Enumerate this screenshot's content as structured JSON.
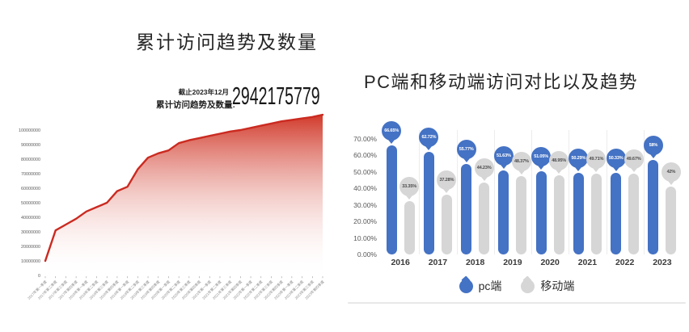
{
  "chart_data": [
    {
      "type": "area",
      "title": "累计访问趋势及数量",
      "annotation": {
        "asof": "截止2023年12月",
        "label": "累计访问趋势及数量:",
        "value": "2942175779"
      },
      "x": [
        "2017年第一季度",
        "2017年第二季度",
        "2017年第三季度",
        "2017年第四季度",
        "2018年第一季度",
        "2018年第二季度",
        "2018年第三季度",
        "2018年第四季度",
        "2019年第一季度",
        "2019年第二季度",
        "2019年第三季度",
        "2019年第四季度",
        "2020年第一季度",
        "2020年第二季度",
        "2020年第三季度",
        "2020年第四季度",
        "2021年第一季度",
        "2021年第二季度",
        "2021年第三季度",
        "2021年第四季度",
        "2022年第一季度",
        "2022年第二季度",
        "2022年第三季度",
        "2022年第四季度",
        "2023年第一季度",
        "2023年第二季度",
        "2023年第三季度",
        "2023年第四季度"
      ],
      "values_millions": [
        10,
        31,
        35,
        39,
        44,
        47,
        50,
        58,
        61,
        73,
        81,
        84,
        86,
        91,
        93,
        94.5,
        96,
        97.5,
        99,
        100,
        101.5,
        103,
        104.5,
        106,
        107,
        108,
        109,
        110.5
      ],
      "y_ticks": [
        "100000000",
        "90000000",
        "80000000",
        "70000000",
        "60000000",
        "50000000",
        "40000000",
        "30000000",
        "20000000",
        "10000000",
        "0"
      ],
      "ylim_millions": [
        0,
        115
      ],
      "grid": false,
      "line_color": "#cb2a20",
      "fill_top_color": "#d13a2b"
    },
    {
      "type": "bar",
      "title": "PC端和移动端访问对比以及趋势",
      "categories": [
        "2016",
        "2017",
        "2018",
        "2019",
        "2020",
        "2021",
        "2022",
        "2023"
      ],
      "series": [
        {
          "name": "pc端",
          "color": "#4472c4",
          "values": [
            66.65,
            62.72,
            55.77,
            51.63,
            51.05,
            50.29,
            50.33,
            58
          ],
          "labels": [
            "66.65%",
            "62.72%",
            "55.77%",
            "51.63%",
            "51.05%",
            "50.29%",
            "50.33%",
            "58%"
          ]
        },
        {
          "name": "移动端",
          "color": "#d6d6d6",
          "values": [
            33.35,
            37.28,
            44.23,
            48.37,
            48.95,
            49.71,
            49.67,
            42
          ],
          "labels": [
            "33.35%",
            "37.28%",
            "44.23%",
            "48.37%",
            "48.95%",
            "49.71%",
            "49.67%",
            "42%"
          ]
        }
      ],
      "y_ticks": [
        "70.00%",
        "60.00%",
        "50.00%",
        "40.00%",
        "30.00%",
        "20.00%",
        "10.00%",
        "0.00%"
      ],
      "ylim": [
        0,
        70
      ],
      "grid": false,
      "legend_position": "bottom"
    }
  ]
}
